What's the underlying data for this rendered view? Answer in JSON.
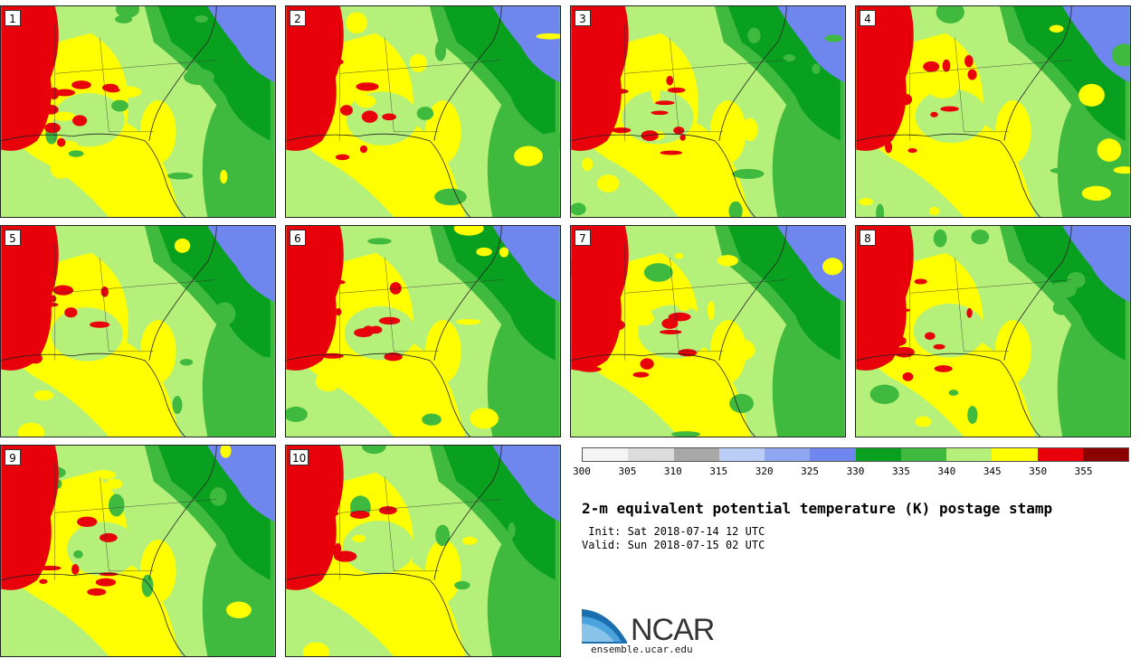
{
  "figure": {
    "title": "2-m equivalent potential temperature (K) postage stamp",
    "init": " Init: Sat 2018-07-14 12 UTC",
    "valid": "Valid: Sun 2018-07-15 02 UTC"
  },
  "stamps": [
    {
      "label": "1"
    },
    {
      "label": "2"
    },
    {
      "label": "3"
    },
    {
      "label": "4"
    },
    {
      "label": "5"
    },
    {
      "label": "6"
    },
    {
      "label": "7"
    },
    {
      "label": "8"
    },
    {
      "label": "9"
    },
    {
      "label": "10"
    }
  ],
  "colorbar": {
    "ticks": [
      "300",
      "305",
      "310",
      "315",
      "320",
      "325",
      "330",
      "335",
      "340",
      "345",
      "350",
      "355"
    ],
    "colors": [
      "#f4f4f4",
      "#dcdcdc",
      "#a8a8a8",
      "#b9cdf7",
      "#8fa7f2",
      "#6e86ee",
      "#09a020",
      "#3fba3f",
      "#b4f07a",
      "#ffff00",
      "#e8000b",
      "#8b0000"
    ]
  },
  "logo": {
    "name": "NCAR",
    "url": "ensemble.ucar.edu"
  },
  "map_colors": {
    "green_light": "#b4f07a",
    "green_mid": "#3fba3f",
    "green_dark": "#09a020",
    "yellow": "#ffff00",
    "red": "#e8000b",
    "blue": "#6e86ee"
  }
}
